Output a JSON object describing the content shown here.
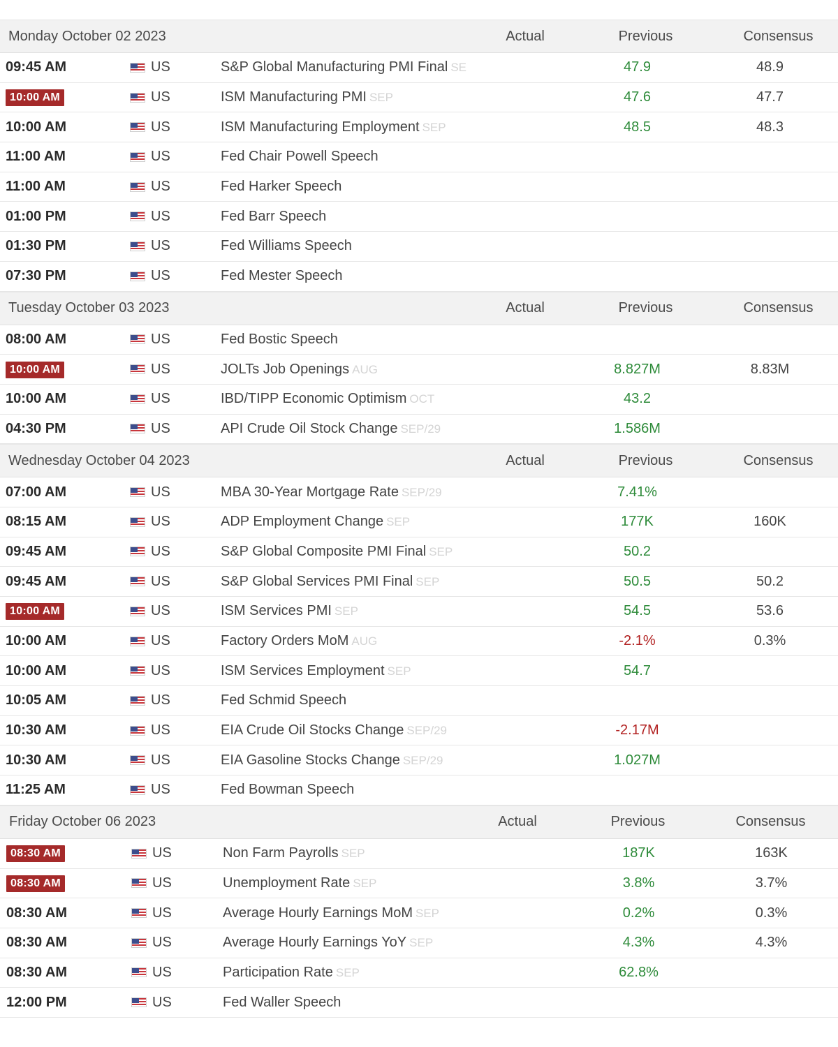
{
  "columns": {
    "actual": "Actual",
    "previous": "Previous",
    "consensus": "Consensus"
  },
  "colors": {
    "positive": "#2e8b3a",
    "negative": "#b22222",
    "highlight": "#a52a2a"
  },
  "days": [
    {
      "date": "Monday October 02 2023",
      "events": [
        {
          "time": "09:45 AM",
          "hi": false,
          "country": "US",
          "name": "S&P Global Manufacturing PMI Final",
          "ref": "SE",
          "actual": "",
          "previous": "47.9",
          "consensus": "48.9"
        },
        {
          "time": "10:00 AM",
          "hi": true,
          "country": "US",
          "name": "ISM Manufacturing PMI",
          "ref": "SEP",
          "actual": "",
          "previous": "47.6",
          "consensus": "47.7"
        },
        {
          "time": "10:00 AM",
          "hi": false,
          "country": "US",
          "name": "ISM Manufacturing Employment",
          "ref": "SEP",
          "actual": "",
          "previous": "48.5",
          "consensus": "48.3"
        },
        {
          "time": "11:00 AM",
          "hi": false,
          "country": "US",
          "name": "Fed Chair Powell Speech",
          "ref": "",
          "actual": "",
          "previous": "",
          "consensus": ""
        },
        {
          "time": "11:00 AM",
          "hi": false,
          "country": "US",
          "name": "Fed Harker Speech",
          "ref": "",
          "actual": "",
          "previous": "",
          "consensus": ""
        },
        {
          "time": "01:00 PM",
          "hi": false,
          "country": "US",
          "name": "Fed Barr Speech",
          "ref": "",
          "actual": "",
          "previous": "",
          "consensus": ""
        },
        {
          "time": "01:30 PM",
          "hi": false,
          "country": "US",
          "name": "Fed Williams Speech",
          "ref": "",
          "actual": "",
          "previous": "",
          "consensus": ""
        },
        {
          "time": "07:30 PM",
          "hi": false,
          "country": "US",
          "name": "Fed Mester Speech",
          "ref": "",
          "actual": "",
          "previous": "",
          "consensus": ""
        }
      ]
    },
    {
      "date": "Tuesday October 03 2023",
      "events": [
        {
          "time": "08:00 AM",
          "hi": false,
          "country": "US",
          "name": "Fed Bostic Speech",
          "ref": "",
          "actual": "",
          "previous": "",
          "consensus": ""
        },
        {
          "time": "10:00 AM",
          "hi": true,
          "country": "US",
          "name": "JOLTs Job Openings",
          "ref": "AUG",
          "actual": "",
          "previous": "8.827M",
          "consensus": "8.83M"
        },
        {
          "time": "10:00 AM",
          "hi": false,
          "country": "US",
          "name": "IBD/TIPP Economic Optimism",
          "ref": "OCT",
          "actual": "",
          "previous": "43.2",
          "consensus": ""
        },
        {
          "time": "04:30 PM",
          "hi": false,
          "country": "US",
          "name": "API Crude Oil Stock Change",
          "ref": "SEP/29",
          "actual": "",
          "previous": "1.586M",
          "consensus": ""
        }
      ]
    },
    {
      "date": "Wednesday October 04 2023",
      "events": [
        {
          "time": "07:00 AM",
          "hi": false,
          "country": "US",
          "name": "MBA 30-Year Mortgage Rate",
          "ref": "SEP/29",
          "actual": "",
          "previous": "7.41%",
          "consensus": ""
        },
        {
          "time": "08:15 AM",
          "hi": false,
          "country": "US",
          "name": "ADP Employment Change",
          "ref": "SEP",
          "actual": "",
          "previous": "177K",
          "consensus": "160K"
        },
        {
          "time": "09:45 AM",
          "hi": false,
          "country": "US",
          "name": "S&P Global Composite PMI Final",
          "ref": "SEP",
          "actual": "",
          "previous": "50.2",
          "consensus": ""
        },
        {
          "time": "09:45 AM",
          "hi": false,
          "country": "US",
          "name": "S&P Global Services PMI Final",
          "ref": "SEP",
          "actual": "",
          "previous": "50.5",
          "consensus": "50.2"
        },
        {
          "time": "10:00 AM",
          "hi": true,
          "country": "US",
          "name": "ISM Services PMI",
          "ref": "SEP",
          "actual": "",
          "previous": "54.5",
          "consensus": "53.6"
        },
        {
          "time": "10:00 AM",
          "hi": false,
          "country": "US",
          "name": "Factory Orders MoM",
          "ref": "AUG",
          "actual": "",
          "previous": "-2.1%",
          "consensus": "0.3%"
        },
        {
          "time": "10:00 AM",
          "hi": false,
          "country": "US",
          "name": "ISM Services Employment",
          "ref": "SEP",
          "actual": "",
          "previous": "54.7",
          "consensus": ""
        },
        {
          "time": "10:05 AM",
          "hi": false,
          "country": "US",
          "name": "Fed Schmid Speech",
          "ref": "",
          "actual": "",
          "previous": "",
          "consensus": ""
        },
        {
          "time": "10:30 AM",
          "hi": false,
          "country": "US",
          "name": "EIA Crude Oil Stocks Change",
          "ref": "SEP/29",
          "actual": "",
          "previous": "-2.17M",
          "consensus": ""
        },
        {
          "time": "10:30 AM",
          "hi": false,
          "country": "US",
          "name": "EIA Gasoline Stocks Change",
          "ref": "SEP/29",
          "actual": "",
          "previous": "1.027M",
          "consensus": ""
        },
        {
          "time": "11:25 AM",
          "hi": false,
          "country": "US",
          "name": "Fed Bowman Speech",
          "ref": "",
          "actual": "",
          "previous": "",
          "consensus": ""
        }
      ]
    },
    {
      "date": "Friday October 06 2023",
      "events": [
        {
          "time": "08:30 AM",
          "hi": true,
          "country": "US",
          "name": "Non Farm Payrolls",
          "ref": "SEP",
          "actual": "",
          "previous": "187K",
          "consensus": "163K"
        },
        {
          "time": "08:30 AM",
          "hi": true,
          "country": "US",
          "name": "Unemployment Rate",
          "ref": "SEP",
          "actual": "",
          "previous": "3.8%",
          "consensus": "3.7%"
        },
        {
          "time": "08:30 AM",
          "hi": false,
          "country": "US",
          "name": "Average Hourly Earnings MoM",
          "ref": "SEP",
          "actual": "",
          "previous": "0.2%",
          "consensus": "0.3%"
        },
        {
          "time": "08:30 AM",
          "hi": false,
          "country": "US",
          "name": "Average Hourly Earnings YoY",
          "ref": "SEP",
          "actual": "",
          "previous": "4.3%",
          "consensus": "4.3%"
        },
        {
          "time": "08:30 AM",
          "hi": false,
          "country": "US",
          "name": "Participation Rate",
          "ref": "SEP",
          "actual": "",
          "previous": "62.8%",
          "consensus": ""
        },
        {
          "time": "12:00 PM",
          "hi": false,
          "country": "US",
          "name": "Fed Waller Speech",
          "ref": "",
          "actual": "",
          "previous": "",
          "consensus": ""
        }
      ]
    }
  ]
}
